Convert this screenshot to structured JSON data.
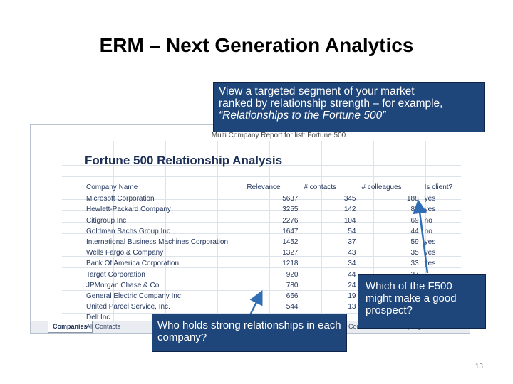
{
  "slide": {
    "title": "ERM – Next Generation Analytics",
    "page_number": "13"
  },
  "sheet": {
    "header": "Multi Company Report for list: Fortune 500",
    "report_title": "Fortune 500 Relationship Analysis",
    "columns": [
      "Company Name",
      "Relevance",
      "# contacts",
      "# colleagues",
      "Is client?"
    ],
    "rows": [
      [
        "Microsoft Corporation",
        "5637",
        "345",
        "188",
        "yes"
      ],
      [
        "Hewlett-Packard Company",
        "3255",
        "142",
        "88",
        "yes"
      ],
      [
        "Citigroup Inc",
        "2276",
        "104",
        "69",
        "no"
      ],
      [
        "Goldman Sachs Group Inc",
        "1647",
        "54",
        "44",
        "no"
      ],
      [
        "International Business Machines Corporation",
        "1452",
        "37",
        "59",
        "yes"
      ],
      [
        "Wells Fargo & Company",
        "1327",
        "43",
        "35",
        "yes"
      ],
      [
        "Bank Of America Corporation",
        "1218",
        "34",
        "33",
        "yes"
      ],
      [
        "Target Corporation",
        "920",
        "44",
        "27",
        ""
      ],
      [
        "JPMorgan Chase & Co",
        "780",
        "24",
        "",
        ""
      ],
      [
        "General Electric Company Inc",
        "666",
        "19",
        "",
        ""
      ],
      [
        "United Parcel Service, Inc.",
        "544",
        "13",
        "",
        ""
      ],
      [
        "Dell Inc",
        "",
        "",
        "",
        ""
      ]
    ],
    "tabs": [
      "Companies",
      "All Contacts",
      "Contact",
      "Company Contacts"
    ]
  },
  "callouts": {
    "top_line1": "View a targeted segment of your market",
    "top_line2": "ranked by relationship strength – for example,",
    "top_line3": "“Relationships to the Fortune 500”",
    "left": "Who holds strong relationships in each company?",
    "right": "Which of the F500 might make a good prospect?"
  },
  "colors": {
    "callout_bg": "#1f467a",
    "table_text": "#24375e"
  }
}
